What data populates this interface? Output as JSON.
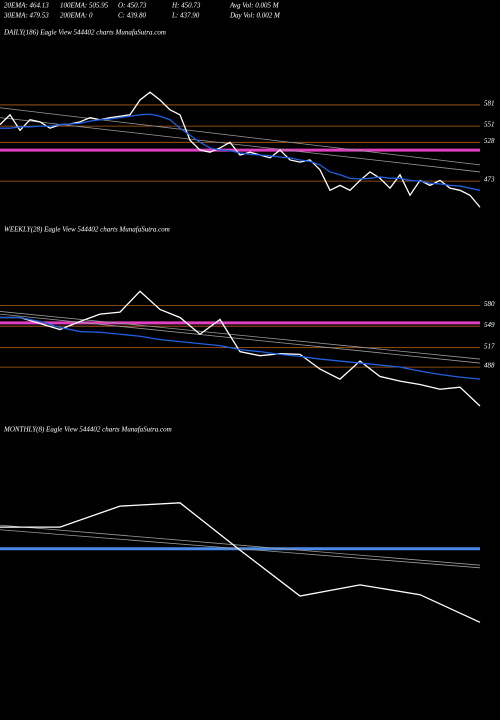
{
  "header": {
    "rows": [
      [
        "20EMA: 464.13",
        "100EMA: 505.95",
        "O: 450.73",
        "H: 450.73",
        "Avg Vol: 0.005 M"
      ],
      [
        "30EMA: 479.53",
        "200EMA: 0",
        "C: 439.80",
        "L: 437.90",
        "Day Vol: 0.002 M"
      ]
    ]
  },
  "chart_data": [
    {
      "type": "line",
      "title": "DAILY(186) Eagle  View  544402  charts MunafaSutra.com",
      "ylim": [
        425,
        673
      ],
      "yticks": [
        581,
        551,
        528,
        473
      ],
      "level_color": "#b0601a",
      "band": {
        "value": 517,
        "color": "#e040c0"
      },
      "trendlines": [
        {
          "color": "#9a9a9a",
          "values": [
            577,
            496
          ]
        },
        {
          "color": "#9a9a9a",
          "values": [
            563,
            486
          ]
        }
      ],
      "series": [
        {
          "color": "#ffffff",
          "values": [
            553,
            567,
            545,
            560,
            557,
            548,
            553,
            554,
            557,
            563,
            560,
            563,
            565,
            567,
            588,
            599,
            588,
            574,
            567,
            531,
            517,
            514,
            520,
            528,
            510,
            514,
            510,
            506,
            517,
            503,
            500,
            503,
            489,
            460,
            467,
            460,
            474,
            486,
            477,
            463,
            482,
            453,
            474,
            467,
            474,
            463,
            460,
            453,
            436
          ]
        },
        {
          "color": "#1f5fe0",
          "values": [
            548,
            548,
            550,
            550,
            551,
            551,
            553,
            554,
            555,
            558,
            560,
            561,
            563,
            565,
            567,
            568,
            565,
            560,
            548,
            538,
            528,
            520,
            517,
            516,
            513,
            511,
            510,
            509,
            507,
            506,
            503,
            501,
            496,
            486,
            482,
            477,
            476,
            477,
            479,
            477,
            477,
            474,
            473,
            470,
            469,
            467,
            466,
            463,
            460
          ]
        }
      ]
    },
    {
      "type": "line",
      "title": "WEEKLY(28) Eagle  View  544402  charts MunafaSutra.com",
      "ylim": [
        424,
        685
      ],
      "yticks": [
        580,
        549,
        517,
        488
      ],
      "level_color": "#b0601a",
      "band": {
        "value": 554,
        "color": "#e040c0"
      },
      "trendlines": [
        {
          "color": "#9a9a9a",
          "values": [
            571,
            500
          ]
        },
        {
          "color": "#9a9a9a",
          "values": [
            567,
            494
          ]
        }
      ],
      "series": [
        {
          "color": "#ffffff",
          "values": [
            562,
            562,
            553,
            544,
            556,
            567,
            570,
            601,
            574,
            562,
            537,
            559,
            511,
            505,
            508,
            507,
            485,
            470,
            497,
            474,
            467,
            462,
            455,
            458,
            430
          ]
        },
        {
          "color": "#1f5fe0",
          "values": [
            562,
            562,
            556,
            547,
            541,
            540,
            537,
            534,
            529,
            526,
            523,
            520,
            514,
            511,
            507,
            504,
            500,
            497,
            494,
            491,
            488,
            482,
            477,
            473,
            470
          ]
        }
      ]
    },
    {
      "type": "line",
      "title": "MONTHLY(8) Eagle  View  544402  charts MunafaSutra.com",
      "ylim": [
        380,
        700
      ],
      "yticks": [],
      "band": {
        "value": 519,
        "color": "#4a8ae8"
      },
      "trendlines": [
        {
          "color": "#9a9a9a",
          "values": [
            555,
            494
          ]
        },
        {
          "color": "#9a9a9a",
          "values": [
            548,
            490
          ]
        }
      ],
      "series": [
        {
          "color": "#ffffff",
          "values": [
            552,
            552,
            584,
            589,
            517,
            447,
            464,
            449,
            407
          ]
        }
      ]
    }
  ]
}
